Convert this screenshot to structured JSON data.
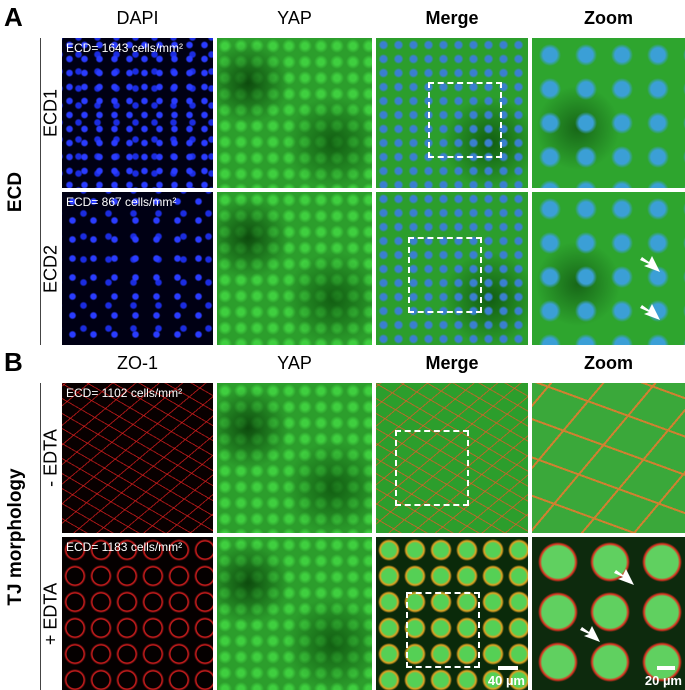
{
  "panels": [
    {
      "label": "A",
      "group_label": "ECD",
      "column_headers": [
        "DAPI",
        "YAP",
        "Merge",
        "Zoom"
      ],
      "rows": [
        {
          "label": "ECD1",
          "annotation": "ECD= 1643 cells/mm²"
        },
        {
          "label": "ECD2",
          "annotation": "ECD= 867 cells/mm²"
        }
      ]
    },
    {
      "label": "B",
      "group_label": "TJ morphology",
      "column_headers": [
        "ZO-1",
        "YAP",
        "Merge",
        "Zoom"
      ],
      "rows": [
        {
          "label": "- EDTA",
          "annotation": "ECD= 1102 cells/mm²"
        },
        {
          "label": "+ EDTA",
          "annotation": "ECD= 1183 cells/mm²"
        }
      ],
      "scale_bars": [
        "40 µm",
        "20 µm"
      ]
    }
  ]
}
